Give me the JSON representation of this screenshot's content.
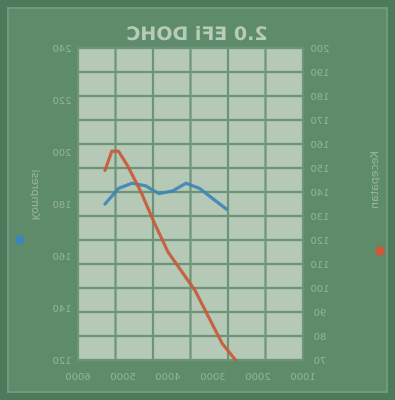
{
  "title": "2.0 EFi DOHC",
  "colors": {
    "background": "#4d7a5b",
    "panel": "#5e8c6b",
    "grid_fill": "#b6c9b7",
    "grid_line": "#6c9478",
    "text": "#c6d6c6",
    "torque": "#c85a3a",
    "power": "#3e86b6"
  },
  "icons": {
    "power_legend": "blue-dot-icon",
    "torque_legend": "red-dot-icon"
  },
  "chart_data": {
    "type": "line",
    "title": "2.0 EFi DOHC",
    "mirrored_print": true,
    "grid": true,
    "xlabel": "",
    "xlim": [
      1000,
      6000
    ],
    "x_ticks": [
      "1000",
      "2000",
      "3000",
      "4000",
      "5000",
      "6000"
    ],
    "left_axis": {
      "label": "Kompresi",
      "ylim": [
        120,
        240
      ],
      "ticks": [
        "120",
        "140",
        "160",
        "180",
        "200",
        "220",
        "240"
      ]
    },
    "right_axis": {
      "label": "Kecepatan",
      "ylim": [
        70,
        200
      ],
      "ticks": [
        "70",
        "80",
        "90",
        "100",
        "110",
        "120",
        "130",
        "140",
        "150",
        "160",
        "170",
        "180",
        "190",
        "200"
      ]
    },
    "series": [
      {
        "name": "Kompresi",
        "axis": "left",
        "color": "#3e86b6",
        "x": [
          1600,
          1900,
          2200,
          2500,
          2800,
          3100,
          3400,
          3700,
          4000,
          4300
        ],
        "y": [
          180,
          186,
          188,
          187,
          184,
          185,
          188,
          186,
          182,
          178
        ]
      },
      {
        "name": "Kecepatan",
        "axis": "right",
        "color": "#c85a3a",
        "x": [
          1600,
          1750,
          1900,
          2100,
          2400,
          2700,
          3000,
          3300,
          3600,
          3900,
          4200,
          4500
        ],
        "y": [
          149,
          157,
          157,
          151,
          140,
          127,
          115,
          107,
          99,
          88,
          77,
          70
        ]
      }
    ]
  }
}
